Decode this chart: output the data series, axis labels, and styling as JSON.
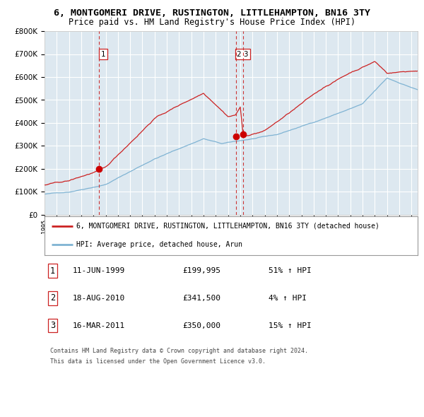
{
  "title": "6, MONTGOMERI DRIVE, RUSTINGTON, LITTLEHAMPTON, BN16 3TY",
  "subtitle": "Price paid vs. HM Land Registry's House Price Index (HPI)",
  "legend_line1": "6, MONTGOMERI DRIVE, RUSTINGTON, LITTLEHAMPTON, BN16 3TY (detached house)",
  "legend_line2": "HPI: Average price, detached house, Arun",
  "footer1": "Contains HM Land Registry data © Crown copyright and database right 2024.",
  "footer2": "This data is licensed under the Open Government Licence v3.0.",
  "transactions": [
    {
      "num": "1",
      "date": "11-JUN-1999",
      "price": "£199,995",
      "pct": "51% ↑ HPI"
    },
    {
      "num": "2",
      "date": "18-AUG-2010",
      "price": "£341,500",
      "pct": "4% ↑ HPI"
    },
    {
      "num": "3",
      "date": "16-MAR-2011",
      "price": "£350,000",
      "pct": "15% ↑ HPI"
    }
  ],
  "t1_x": 1999.44,
  "t2_x": 2010.63,
  "t3_x": 2011.21,
  "t1_y": 199995,
  "t2_y": 341500,
  "t3_y": 350000,
  "hpi_color": "#7fb3d3",
  "price_color": "#cc2222",
  "dot_color": "#cc0000",
  "vline_color": "#cc3333",
  "bg_color": "#dde8f0",
  "grid_color": "#ffffff",
  "ylim": [
    0,
    800000
  ],
  "xlim_start": 1995.0,
  "xlim_end": 2025.5,
  "title_fontsize": 9.5,
  "subtitle_fontsize": 8.5
}
